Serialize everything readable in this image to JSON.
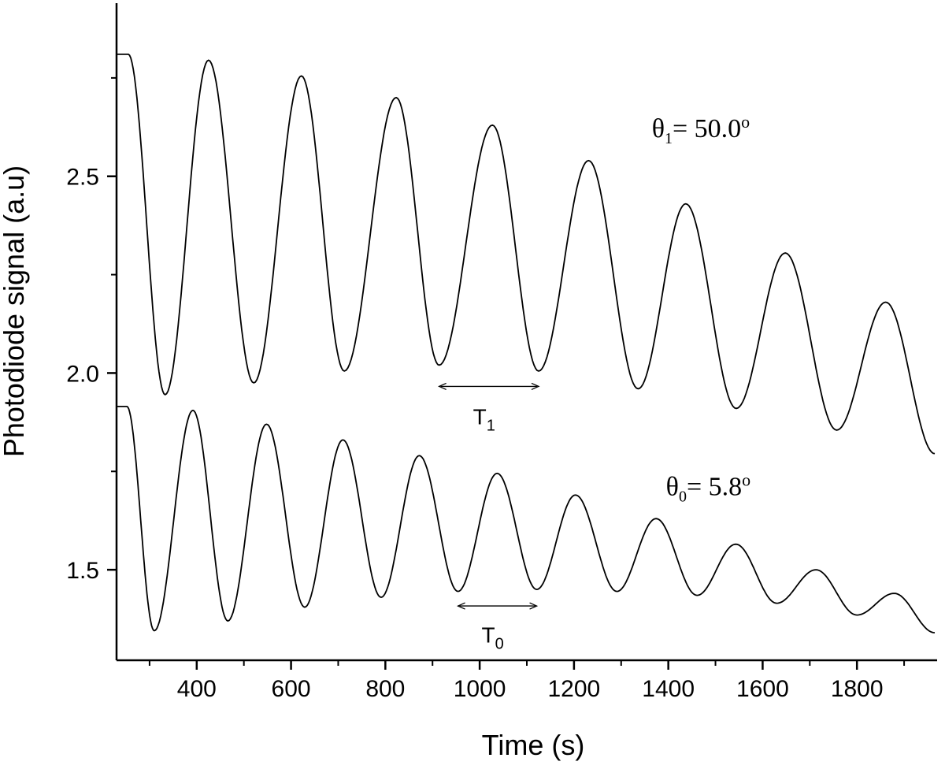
{
  "chart_data": {
    "type": "line",
    "xlabel": "Time (s)",
    "ylabel": "Photodiode signal (a.u)",
    "xlim": [
      230,
      1970
    ],
    "ylim": [
      1.27,
      2.94
    ],
    "xticks": [
      400,
      600,
      800,
      1000,
      1200,
      1400,
      1600,
      1800
    ],
    "xtick_labels": [
      "400",
      "600",
      "800",
      "1000",
      "1200",
      "1400",
      "1600",
      "1800"
    ],
    "xminor_ticks": [
      300,
      500,
      700,
      900,
      1100,
      1300,
      1500,
      1700,
      1900
    ],
    "yticks": [
      1.5,
      2.0,
      2.5
    ],
    "ytick_labels": [
      "1.5",
      "2.0",
      "2.5"
    ],
    "yminor_ticks": [
      1.75,
      2.25,
      2.75
    ],
    "grid": false,
    "series": [
      {
        "key": "theta1",
        "hold": [
          [
            230,
            2.81
          ],
          [
            255,
            2.81
          ]
        ],
        "extrema": [
          [
            255,
            2.81
          ],
          [
            333,
            1.945
          ],
          [
            425,
            2.795
          ],
          [
            521,
            1.975
          ],
          [
            622,
            2.755
          ],
          [
            713,
            2.005
          ],
          [
            823,
            2.7
          ],
          [
            914,
            2.02
          ],
          [
            1027,
            2.63
          ],
          [
            1125,
            2.005
          ],
          [
            1231,
            2.54
          ],
          [
            1336,
            1.96
          ],
          [
            1437,
            2.43
          ],
          [
            1544,
            1.91
          ],
          [
            1648,
            2.305
          ],
          [
            1757,
            1.855
          ],
          [
            1861,
            2.18
          ],
          [
            1965,
            1.795
          ]
        ]
      },
      {
        "key": "theta0",
        "hold": [
          [
            230,
            1.915
          ],
          [
            252,
            1.915
          ]
        ],
        "extrema": [
          [
            252,
            1.915
          ],
          [
            310,
            1.345
          ],
          [
            392,
            1.905
          ],
          [
            466,
            1.37
          ],
          [
            548,
            1.87
          ],
          [
            629,
            1.405
          ],
          [
            710,
            1.83
          ],
          [
            791,
            1.43
          ],
          [
            872,
            1.79
          ],
          [
            954,
            1.445
          ],
          [
            1037,
            1.745
          ],
          [
            1121,
            1.45
          ],
          [
            1203,
            1.69
          ],
          [
            1291,
            1.445
          ],
          [
            1374,
            1.63
          ],
          [
            1461,
            1.435
          ],
          [
            1543,
            1.565
          ],
          [
            1630,
            1.415
          ],
          [
            1713,
            1.5
          ],
          [
            1800,
            1.385
          ],
          [
            1879,
            1.44
          ],
          [
            1965,
            1.34
          ]
        ]
      }
    ],
    "annotations": [
      {
        "key": "theta1_label",
        "symbol": "θ",
        "sub": "1",
        "rest": "= 50.0",
        "sup": "o",
        "x": 1365,
        "y": 2.6
      },
      {
        "key": "theta0_label",
        "symbol": "θ",
        "sub": "0",
        "rest": "= 5.8",
        "sup": "o",
        "x": 1395,
        "y": 1.69
      },
      {
        "key": "T1",
        "type": "period-arrow",
        "x1": 914,
        "x2": 1125,
        "y": 1.966,
        "text": "T",
        "sub": "1",
        "text_y": 1.87
      },
      {
        "key": "T0",
        "type": "period-arrow",
        "x1": 954,
        "x2": 1121,
        "y": 1.408,
        "text": "T",
        "sub": "0",
        "text_y": 1.315
      }
    ]
  }
}
